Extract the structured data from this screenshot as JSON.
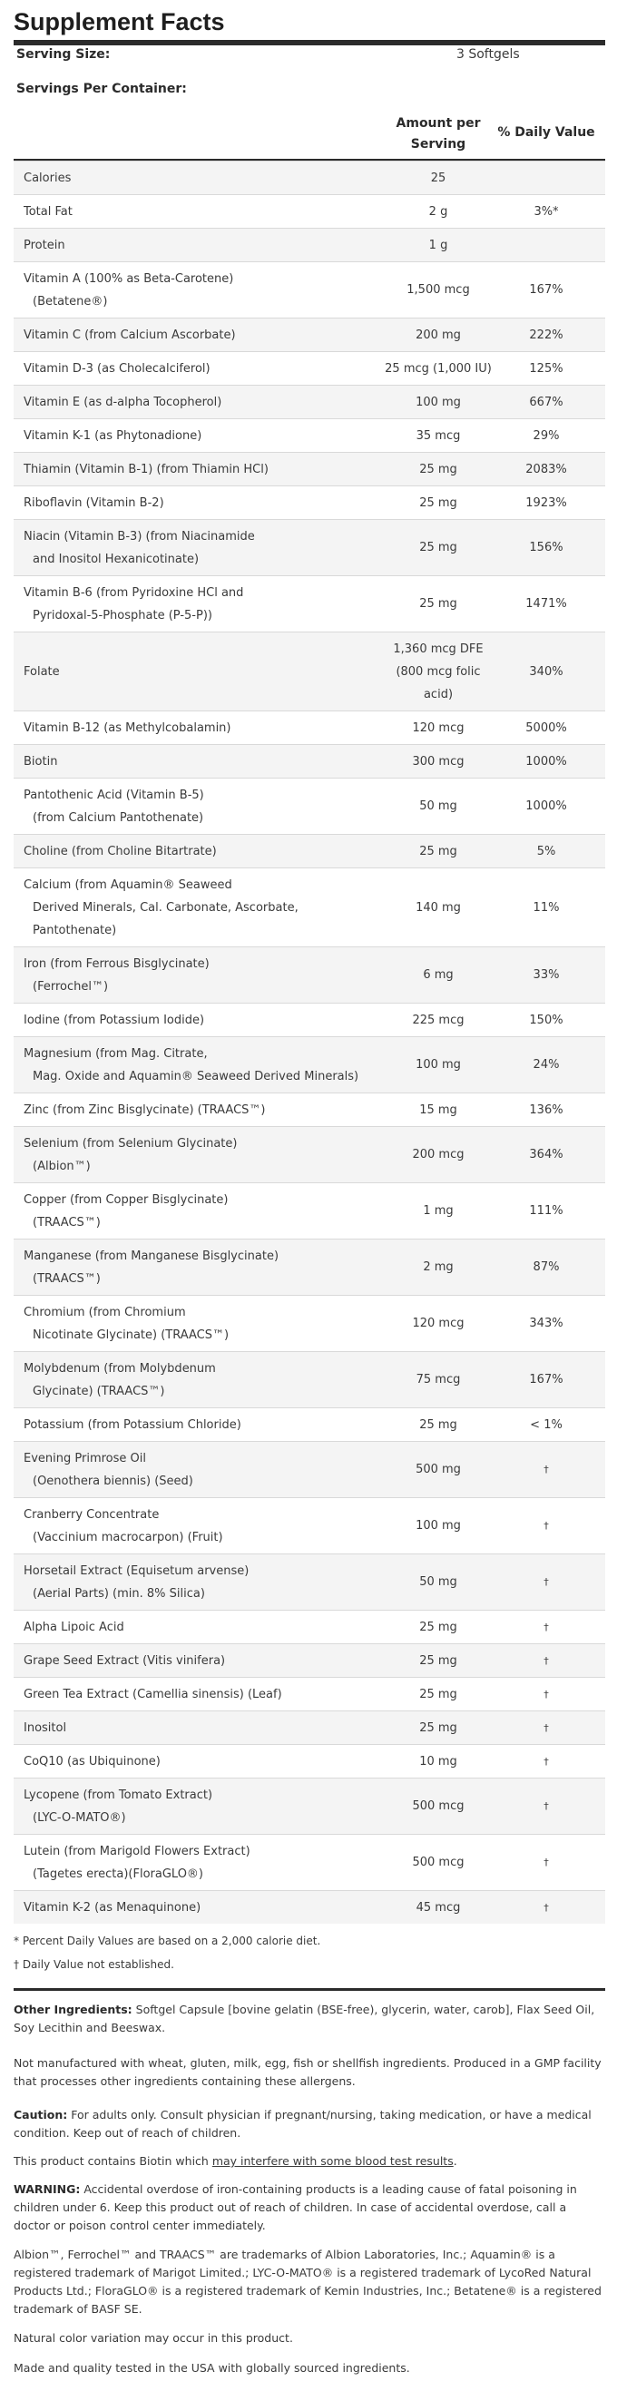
{
  "title": "Supplement Facts",
  "serving": {
    "label": "Serving Size:",
    "value": "3 Softgels"
  },
  "servings_per_container": {
    "label": "Servings Per Container:",
    "value": ""
  },
  "columns": {
    "amount_line1": "Amount per",
    "amount_line2": "Serving",
    "dv": "% Daily Value"
  },
  "nutrients": [
    {
      "name": [
        "Calories"
      ],
      "amount": [
        "25"
      ],
      "dv": ""
    },
    {
      "name": [
        "Total Fat"
      ],
      "amount": [
        "2 g"
      ],
      "dv": "3%*"
    },
    {
      "name": [
        "Protein"
      ],
      "amount": [
        "1 g"
      ],
      "dv": ""
    },
    {
      "name": [
        "Vitamin A (100% as Beta-Carotene)",
        "(Betatene®)"
      ],
      "amount": [
        "1,500 mcg"
      ],
      "dv": "167%"
    },
    {
      "name": [
        "Vitamin C (from Calcium Ascorbate)"
      ],
      "amount": [
        "200 mg"
      ],
      "dv": "222%"
    },
    {
      "name": [
        "Vitamin D-3 (as Cholecalciferol)"
      ],
      "amount": [
        "25 mcg (1,000 IU)"
      ],
      "dv": "125%"
    },
    {
      "name": [
        "Vitamin E (as d-alpha Tocopherol)"
      ],
      "amount": [
        "100 mg"
      ],
      "dv": "667%"
    },
    {
      "name": [
        "Vitamin K-1 (as Phytonadione)"
      ],
      "amount": [
        "35 mcg"
      ],
      "dv": "29%"
    },
    {
      "name": [
        "Thiamin (Vitamin B-1) (from Thiamin HCl)"
      ],
      "amount": [
        "25 mg"
      ],
      "dv": "2083%"
    },
    {
      "name": [
        "Riboflavin (Vitamin B-2)"
      ],
      "amount": [
        "25 mg"
      ],
      "dv": "1923%"
    },
    {
      "name": [
        "Niacin (Vitamin B-3) (from Niacinamide",
        "and Inositol Hexanicotinate)"
      ],
      "amount": [
        "25 mg"
      ],
      "dv": "156%"
    },
    {
      "name": [
        "Vitamin B-6 (from Pyridoxine HCl and",
        "Pyridoxal-5-Phosphate (P-5-P))"
      ],
      "amount": [
        "25 mg"
      ],
      "dv": "1471%"
    },
    {
      "name": [
        "Folate"
      ],
      "amount": [
        "1,360 mcg DFE",
        "(800 mcg folic",
        "acid)"
      ],
      "dv": "340%"
    },
    {
      "name": [
        "Vitamin B-12 (as Methylcobalamin)"
      ],
      "amount": [
        "120 mcg"
      ],
      "dv": "5000%"
    },
    {
      "name": [
        "Biotin"
      ],
      "amount": [
        "300 mcg"
      ],
      "dv": "1000%"
    },
    {
      "name": [
        "Pantothenic Acid (Vitamin B-5)",
        "(from Calcium Pantothenate)"
      ],
      "amount": [
        "50 mg"
      ],
      "dv": "1000%"
    },
    {
      "name": [
        "Choline (from Choline Bitartrate)"
      ],
      "amount": [
        "25 mg"
      ],
      "dv": "5%"
    },
    {
      "name": [
        "Calcium (from Aquamin® Seaweed",
        "Derived Minerals, Cal. Carbonate, Ascorbate,",
        "Pantothenate)"
      ],
      "amount": [
        "140 mg"
      ],
      "dv": "11%"
    },
    {
      "name": [
        "Iron (from Ferrous Bisglycinate)",
        "(Ferrochel™)"
      ],
      "amount": [
        "6 mg"
      ],
      "dv": "33%"
    },
    {
      "name": [
        "Iodine (from Potassium Iodide)"
      ],
      "amount": [
        "225 mcg"
      ],
      "dv": "150%"
    },
    {
      "name": [
        "Magnesium (from Mag. Citrate,",
        "Mag. Oxide and Aquamin® Seaweed Derived Minerals)"
      ],
      "amount": [
        "100 mg"
      ],
      "dv": "24%"
    },
    {
      "name": [
        "Zinc (from Zinc Bisglycinate) (TRAACS™)"
      ],
      "amount": [
        "15 mg"
      ],
      "dv": "136%"
    },
    {
      "name": [
        "Selenium (from Selenium Glycinate)",
        "(Albion™)"
      ],
      "amount": [
        "200 mcg"
      ],
      "dv": "364%"
    },
    {
      "name": [
        "Copper (from Copper Bisglycinate)",
        "(TRAACS™)"
      ],
      "amount": [
        "1 mg"
      ],
      "dv": "111%"
    },
    {
      "name": [
        "Manganese (from Manganese Bisglycinate)",
        "(TRAACS™)"
      ],
      "amount": [
        "2 mg"
      ],
      "dv": "87%"
    },
    {
      "name": [
        "Chromium (from Chromium",
        "Nicotinate Glycinate) (TRAACS™)"
      ],
      "amount": [
        "120 mcg"
      ],
      "dv": "343%"
    },
    {
      "name": [
        "Molybdenum (from Molybdenum",
        "Glycinate) (TRAACS™)"
      ],
      "amount": [
        "75 mcg"
      ],
      "dv": "167%"
    },
    {
      "name": [
        "Potassium (from Potassium Chloride)"
      ],
      "amount": [
        "25 mg"
      ],
      "dv": "< 1%"
    },
    {
      "name": [
        "Evening Primrose Oil",
        "(Oenothera biennis) (Seed)"
      ],
      "amount": [
        "500 mg"
      ],
      "dv": "†"
    },
    {
      "name": [
        "Cranberry Concentrate",
        "(Vaccinium macrocarpon) (Fruit)"
      ],
      "amount": [
        "100 mg"
      ],
      "dv": "†"
    },
    {
      "name": [
        "Horsetail Extract (Equisetum arvense)",
        "(Aerial Parts) (min. 8% Silica)"
      ],
      "amount": [
        "50 mg"
      ],
      "dv": "†"
    },
    {
      "name": [
        "Alpha Lipoic Acid"
      ],
      "amount": [
        "25 mg"
      ],
      "dv": "†"
    },
    {
      "name": [
        "Grape Seed Extract (Vitis vinifera)"
      ],
      "amount": [
        "25 mg"
      ],
      "dv": "†"
    },
    {
      "name": [
        "Green Tea Extract (Camellia sinensis) (Leaf)"
      ],
      "amount": [
        "25 mg"
      ],
      "dv": "†"
    },
    {
      "name": [
        "Inositol"
      ],
      "amount": [
        "25 mg"
      ],
      "dv": "†"
    },
    {
      "name": [
        "CoQ10 (as Ubiquinone)"
      ],
      "amount": [
        "10 mg"
      ],
      "dv": "†"
    },
    {
      "name": [
        "Lycopene (from Tomato Extract)",
        "(LYC-O-MATO®)"
      ],
      "amount": [
        "500 mcg"
      ],
      "dv": "†"
    },
    {
      "name": [
        "Lutein (from Marigold Flowers Extract)",
        "(Tagetes erecta)(FloraGLO®)"
      ],
      "amount": [
        "500 mcg"
      ],
      "dv": "†"
    },
    {
      "name": [
        "Vitamin K-2 (as Menaquinone)"
      ],
      "amount": [
        "45 mcg"
      ],
      "dv": "†"
    }
  ],
  "footnotes": {
    "dv_note": "* Percent Daily Values are based on a 2,000 calorie diet.",
    "dagger_note": "† Daily Value not established."
  },
  "other_ingredients": {
    "label": "Other Ingredients:",
    "text": "Softgel Capsule [bovine gelatin (BSE-free), glycerin, water, carob], Flax Seed Oil, Soy Lecithin and Beeswax."
  },
  "allergen_note": "Not manufactured with wheat, gluten, milk, egg, fish or shellfish ingredients. Produced in a GMP facility that processes other ingredients containing these allergens.",
  "caution": {
    "label": "Caution:",
    "text": "For adults only. Consult physician if pregnant/nursing, taking medication, or have a medical condition. Keep out of reach of children."
  },
  "biotin_note": {
    "before": "This product contains Biotin which ",
    "link": "may interfere with some blood test results",
    "after": "."
  },
  "warning": {
    "label": "WARNING:",
    "text": "Accidental overdose of iron-containing products is a leading cause of fatal poisoning in children under 6. Keep this product out of reach of children. In case of accidental overdose, call a doctor or poison control center immediately."
  },
  "trademarks": "Albion™, Ferrochel™ and TRAACS™ are trademarks of Albion Laboratories, Inc.; Aquamin® is a registered trademark of Marigot Limited.; LYC-O-MATO® is a registered trademark of LycoRed Natural Products Ltd.; FloraGLO® is a registered trademark of Kemin Industries, Inc.; Betatene® is a registered trademark of BASF SE.",
  "color_note": "Natural color variation may occur in this product.",
  "made_note": "Made and quality tested in the USA with globally sourced ingredients."
}
